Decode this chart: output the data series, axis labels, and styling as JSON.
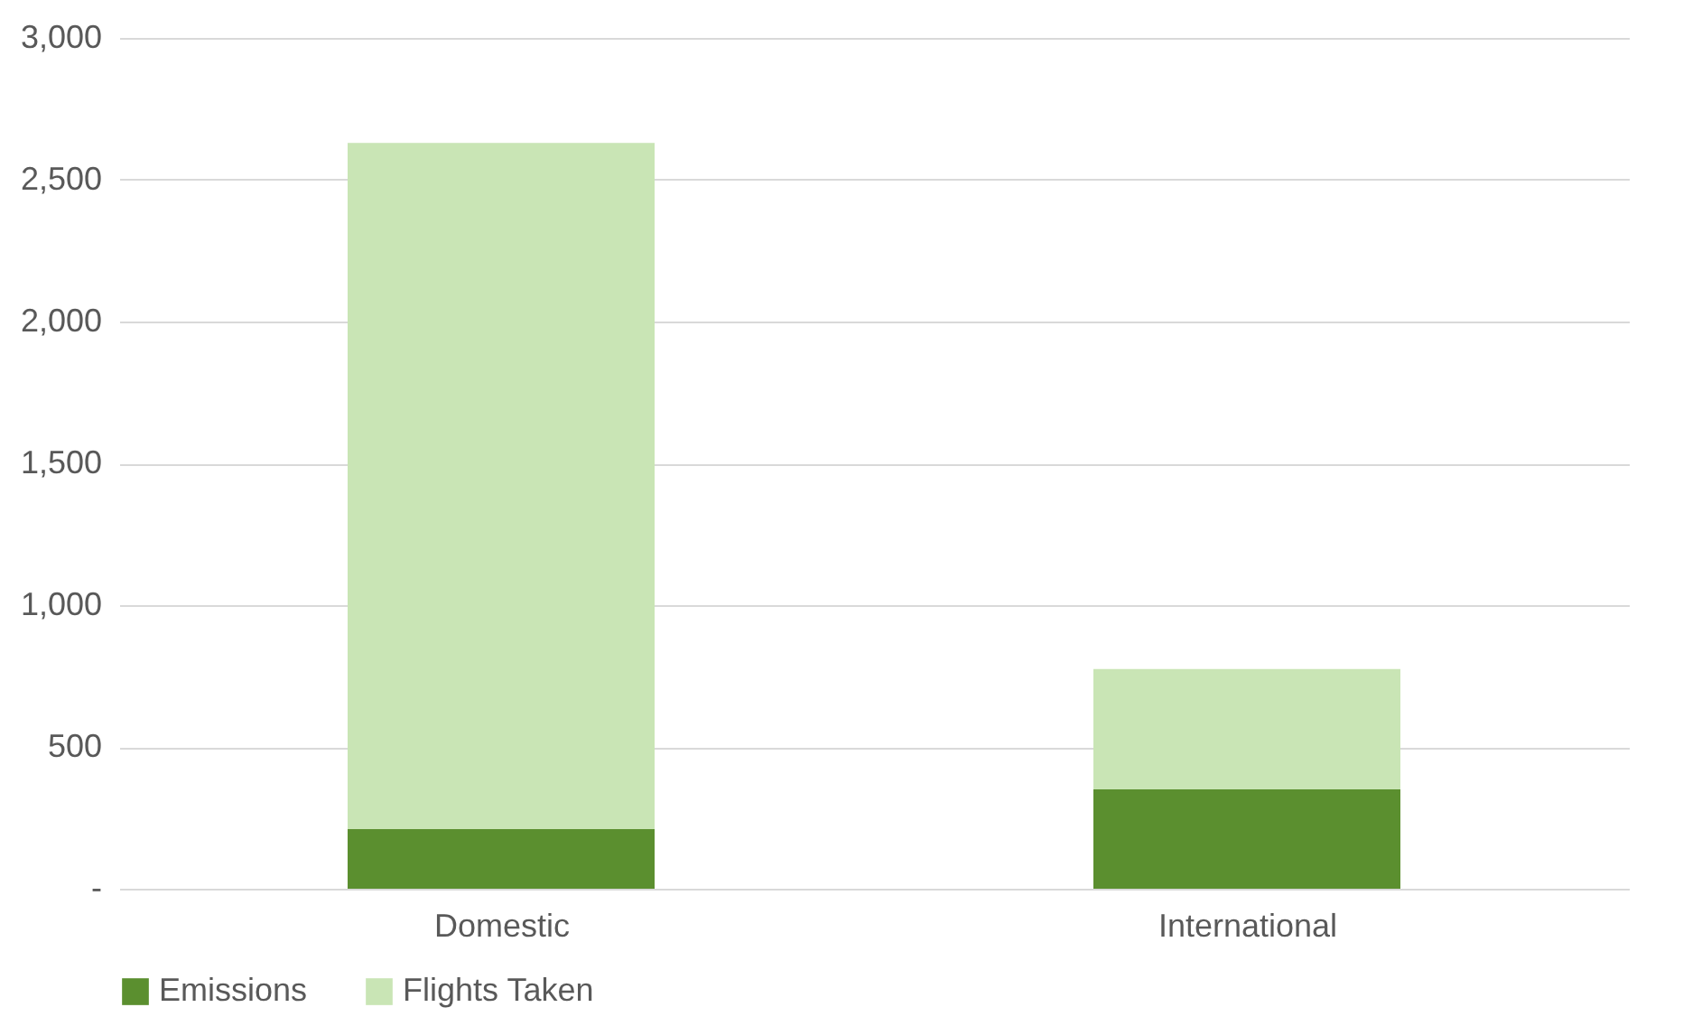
{
  "chart_data": {
    "type": "bar",
    "stacked": true,
    "categories": [
      "Domestic",
      "International"
    ],
    "series": [
      {
        "name": "Emissions",
        "color": "#5b8f2f",
        "values": [
          210,
          350
        ]
      },
      {
        "name": "Flights Taken",
        "color": "#c9e5b5",
        "values": [
          2420,
          425
        ]
      }
    ],
    "ylim": [
      0,
      3000
    ],
    "yticks": [
      {
        "value": 0,
        "label": "-"
      },
      500,
      {
        "value": 1000,
        "label": "1,000"
      },
      {
        "value": 1500,
        "label": "1,500"
      },
      {
        "value": 2000,
        "label": "2,000"
      },
      {
        "value": 2500,
        "label": "2,500"
      },
      {
        "value": 3000,
        "label": "3,000"
      }
    ],
    "grid": "y",
    "legend": "bottom"
  }
}
